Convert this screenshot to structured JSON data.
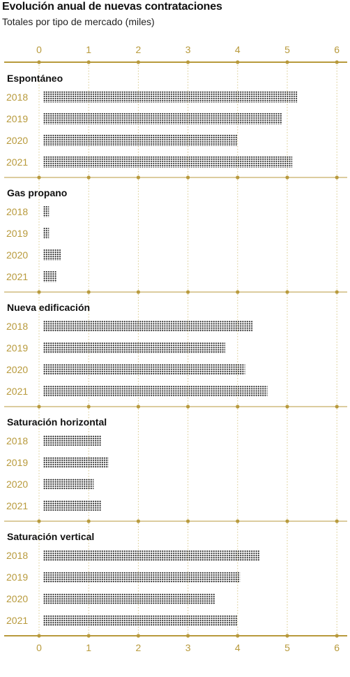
{
  "title": "Evolución anual de nuevas contrataciones",
  "subtitle": "Totales por tipo de mercado (miles)",
  "colors": {
    "axis": "#b89a3c",
    "grid": "#d8c88a",
    "dots": "#111111"
  },
  "chart_data": {
    "type": "bar",
    "title": "Evolución anual de nuevas contrataciones",
    "subtitle": "Totales por tipo de mercado (miles)",
    "xlim": [
      0,
      6
    ],
    "ticks": [
      "0",
      "1",
      "2",
      "3",
      "4",
      "5",
      "6"
    ],
    "tick_values": [
      0,
      1,
      2,
      3,
      4,
      5,
      6
    ],
    "grid": true,
    "groups": [
      {
        "name": "Espontáneo",
        "years": [
          "2018",
          "2019",
          "2020",
          "2021"
        ],
        "values": [
          5.2,
          4.9,
          4.0,
          5.1
        ]
      },
      {
        "name": "Gas propano",
        "years": [
          "2018",
          "2019",
          "2020",
          "2021"
        ],
        "values": [
          0.2,
          0.2,
          0.45,
          0.35
        ]
      },
      {
        "name": "Nueva edificación",
        "years": [
          "2018",
          "2019",
          "2020",
          "2021"
        ],
        "values": [
          4.3,
          3.75,
          4.15,
          4.6
        ]
      },
      {
        "name": "Saturación  horizontal",
        "years": [
          "2018",
          "2019",
          "2020",
          "2021"
        ],
        "values": [
          1.25,
          1.4,
          1.1,
          1.25
        ]
      },
      {
        "name": "Saturación  vertical",
        "years": [
          "2018",
          "2019",
          "2020",
          "2021"
        ],
        "values": [
          4.45,
          4.05,
          3.55,
          4.0
        ]
      }
    ]
  }
}
